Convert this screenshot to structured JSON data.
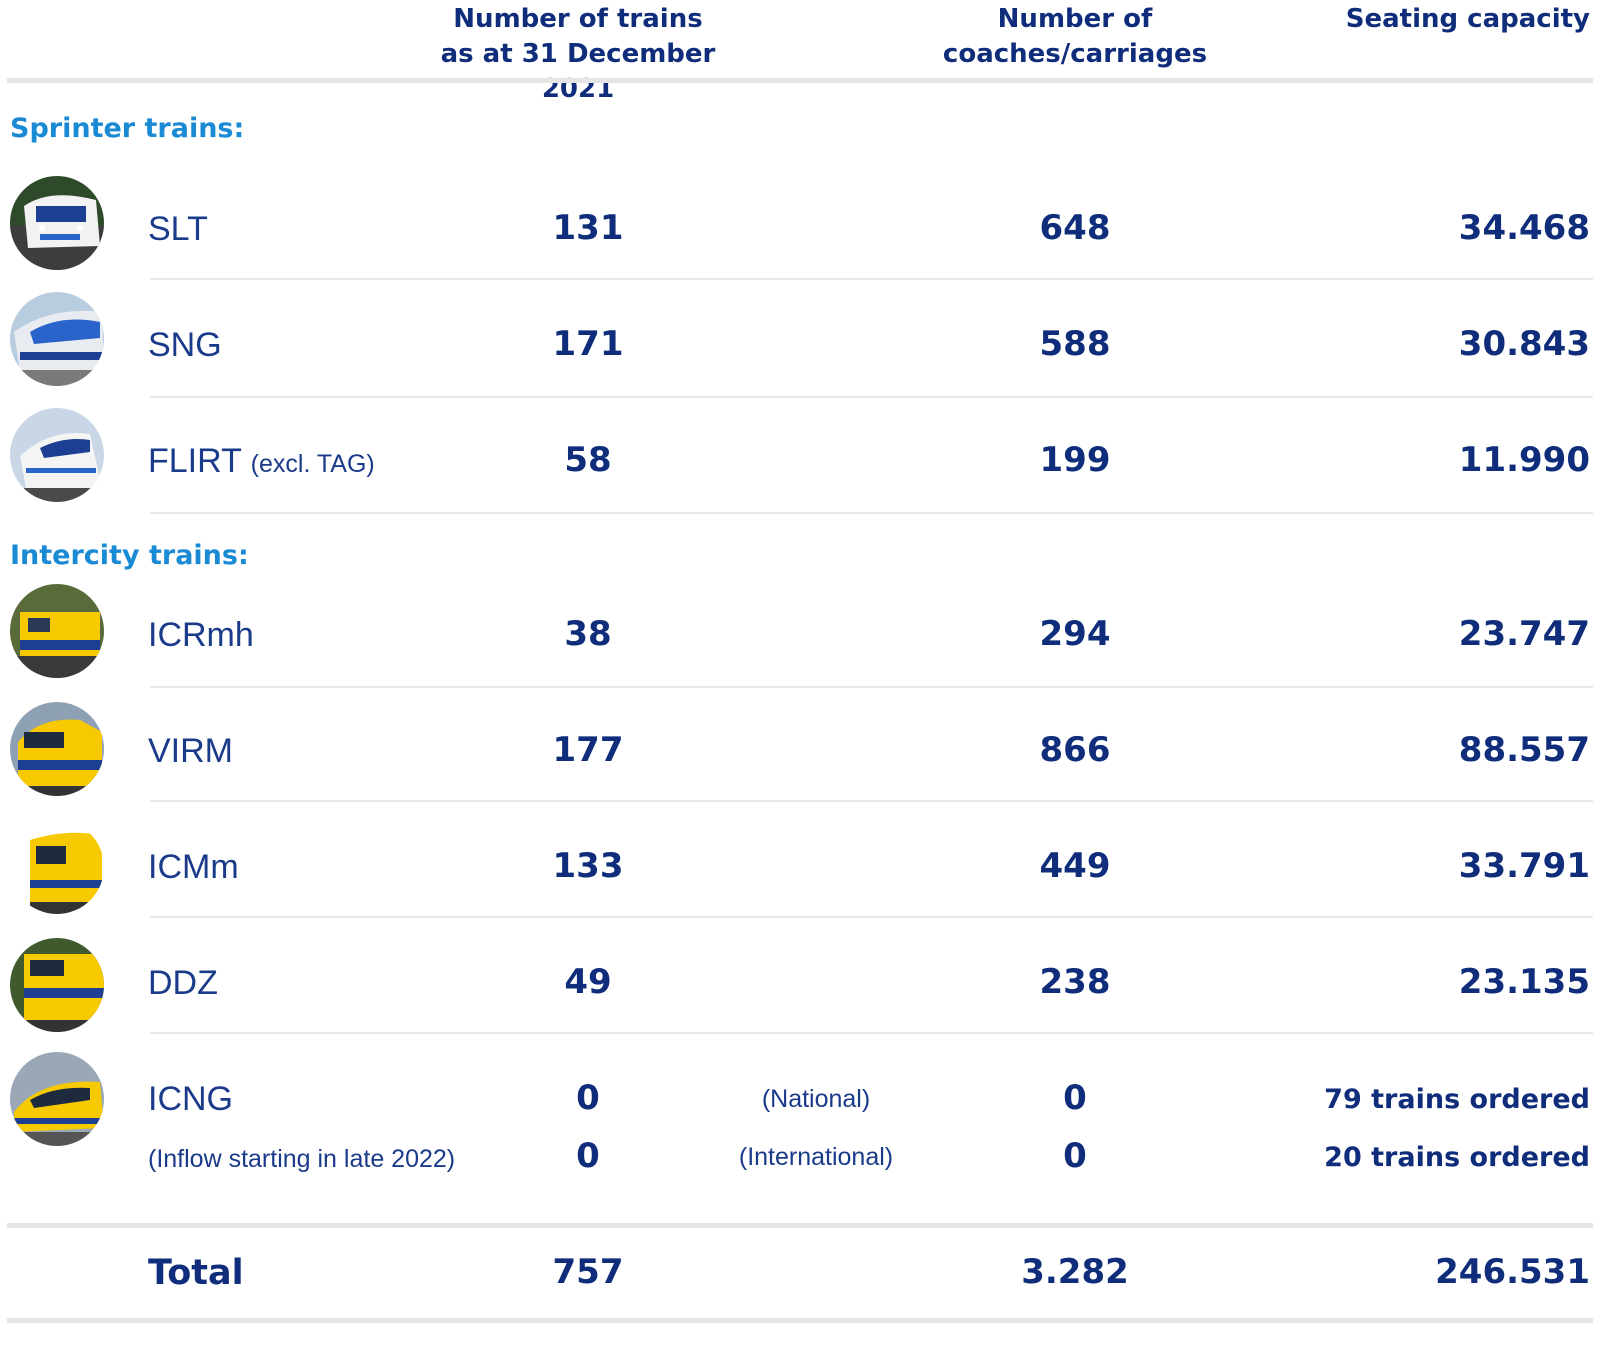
{
  "header": {
    "col1": "Number of trains as at 31 December 2021",
    "col1_line1": "Number of trains",
    "col1_line2": "as at 31 December 2021",
    "col2_line1": "Number of",
    "col2_line2": "coaches/carriages",
    "col3": "Seating capacity"
  },
  "sections": {
    "sprinter": "Sprinter trains:",
    "intercity": "Intercity trains:"
  },
  "rows": [
    {
      "name": "SLT",
      "sub": "",
      "trains": "131",
      "coaches": "648",
      "seats": "34.468",
      "icon": "slt-train-photo"
    },
    {
      "name": "SNG",
      "sub": "",
      "trains": "171",
      "coaches": "588",
      "seats": "30.843",
      "icon": "sng-train-photo"
    },
    {
      "name": "FLIRT",
      "sub": "(excl. TAG)",
      "trains": "58",
      "coaches": "199",
      "seats": "11.990",
      "icon": "flirt-train-photo"
    },
    {
      "name": "ICRmh",
      "sub": "",
      "trains": "38",
      "coaches": "294",
      "seats": "23.747",
      "icon": "icrmh-train-photo"
    },
    {
      "name": "VIRM",
      "sub": "",
      "trains": "177",
      "coaches": "866",
      "seats": "88.557",
      "icon": "virm-train-photo"
    },
    {
      "name": "ICMm",
      "sub": "",
      "trains": "133",
      "coaches": "449",
      "seats": "33.791",
      "icon": "icmm-train-photo"
    },
    {
      "name": "DDZ",
      "sub": "",
      "trains": "49",
      "coaches": "238",
      "seats": "23.135",
      "icon": "ddz-train-photo"
    }
  ],
  "icng": {
    "name": "ICNG",
    "note": "(Inflow starting in late 2022)",
    "national": {
      "label": "(National)",
      "trains": "0",
      "coaches": "0",
      "ordered": "79 trains ordered"
    },
    "international": {
      "label": "(International)",
      "trains": "0",
      "coaches": "0",
      "ordered": "20 trains ordered"
    }
  },
  "total": {
    "label": "Total",
    "trains": "757",
    "coaches": "3.282",
    "seats": "246.531"
  },
  "colors": {
    "primary": "#0f2d7a",
    "section": "#1a8ad4",
    "rule": "#e5e5e5",
    "ns_yellow": "#f7c900",
    "ns_blue": "#1c3f94"
  }
}
